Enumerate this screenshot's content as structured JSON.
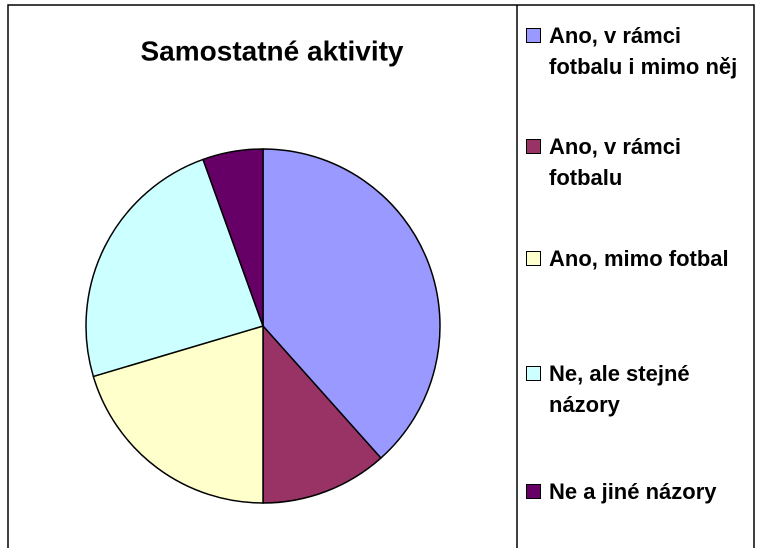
{
  "chart_data": {
    "type": "pie",
    "title": "Samostatné aktivity",
    "categories": [
      "Ano, v rámci fotbalu i mimo něj",
      "Ano, v rámci fotbalu",
      "Ano, mimo fotbal",
      "Ne, ale stejné názory",
      "Ne a jiné názory"
    ],
    "values": [
      38.4,
      11.6,
      20.4,
      24.1,
      5.5
    ],
    "colors": [
      "#9999ff",
      "#993366",
      "#ffffcc",
      "#ccffff",
      "#660066"
    ]
  }
}
